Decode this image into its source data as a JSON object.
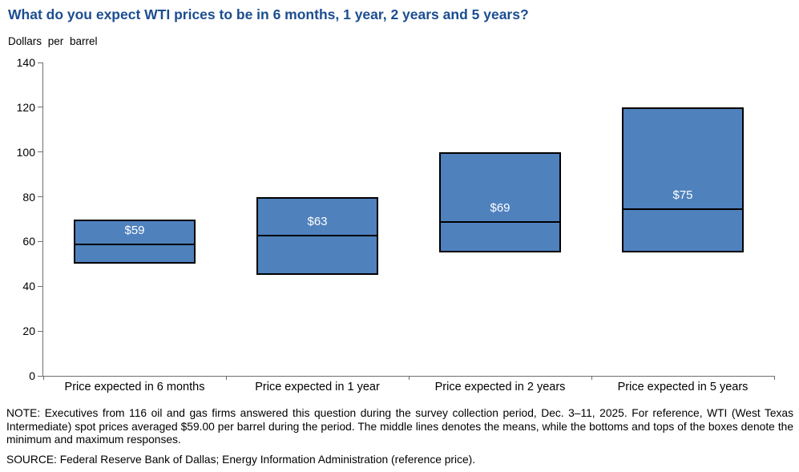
{
  "title": "What do you expect WTI prices to be in 6 months, 1 year, 2 years and 5 years?",
  "unit_label": "Dollars per barrel",
  "chart_data": {
    "type": "bar",
    "variant": "floating-minmax-box-with-mean-line",
    "title": "What do you expect WTI prices to be in 6 months, 1 year, 2 years and 5 years?",
    "ylabel": "Dollars per barrel",
    "categories": [
      "Price expected in 6 months",
      "Price expected in 1 year",
      "Price expected in 2 years",
      "Price expected in 5 years"
    ],
    "series": [
      {
        "name": "Minimum response",
        "values": [
          50,
          45,
          55,
          55
        ]
      },
      {
        "name": "Mean response",
        "values": [
          59,
          63,
          69,
          75
        ]
      },
      {
        "name": "Maximum response",
        "values": [
          70,
          80,
          100,
          120
        ]
      }
    ],
    "data_labels": [
      "$59",
      "$63",
      "$69",
      "$75"
    ],
    "ylim": [
      0,
      140
    ],
    "yticks": [
      0,
      20,
      40,
      60,
      80,
      100,
      120,
      140
    ],
    "grid": false,
    "legend_position": "none",
    "colors": {
      "box_fill": "#4F81BD",
      "box_border": "#000000",
      "mean_line": "#000000",
      "data_label_text": "#FFFFFF",
      "title_text": "#1C4D90",
      "axis_line": "#6e6e6e"
    }
  },
  "note": "NOTE:  Executives from 116 oil and gas firms answered this question during the survey collection period, Dec. 3–11, 2025. For reference, WTI (West Texas Intermediate) spot prices averaged $59.00 per barrel during the period. The middle lines denotes the means, while the bottoms and tops of the boxes denote the minimum and maximum  responses.",
  "source": "SOURCE:  Federal Reserve Bank of Dallas; Energy Information Administration (reference price)."
}
